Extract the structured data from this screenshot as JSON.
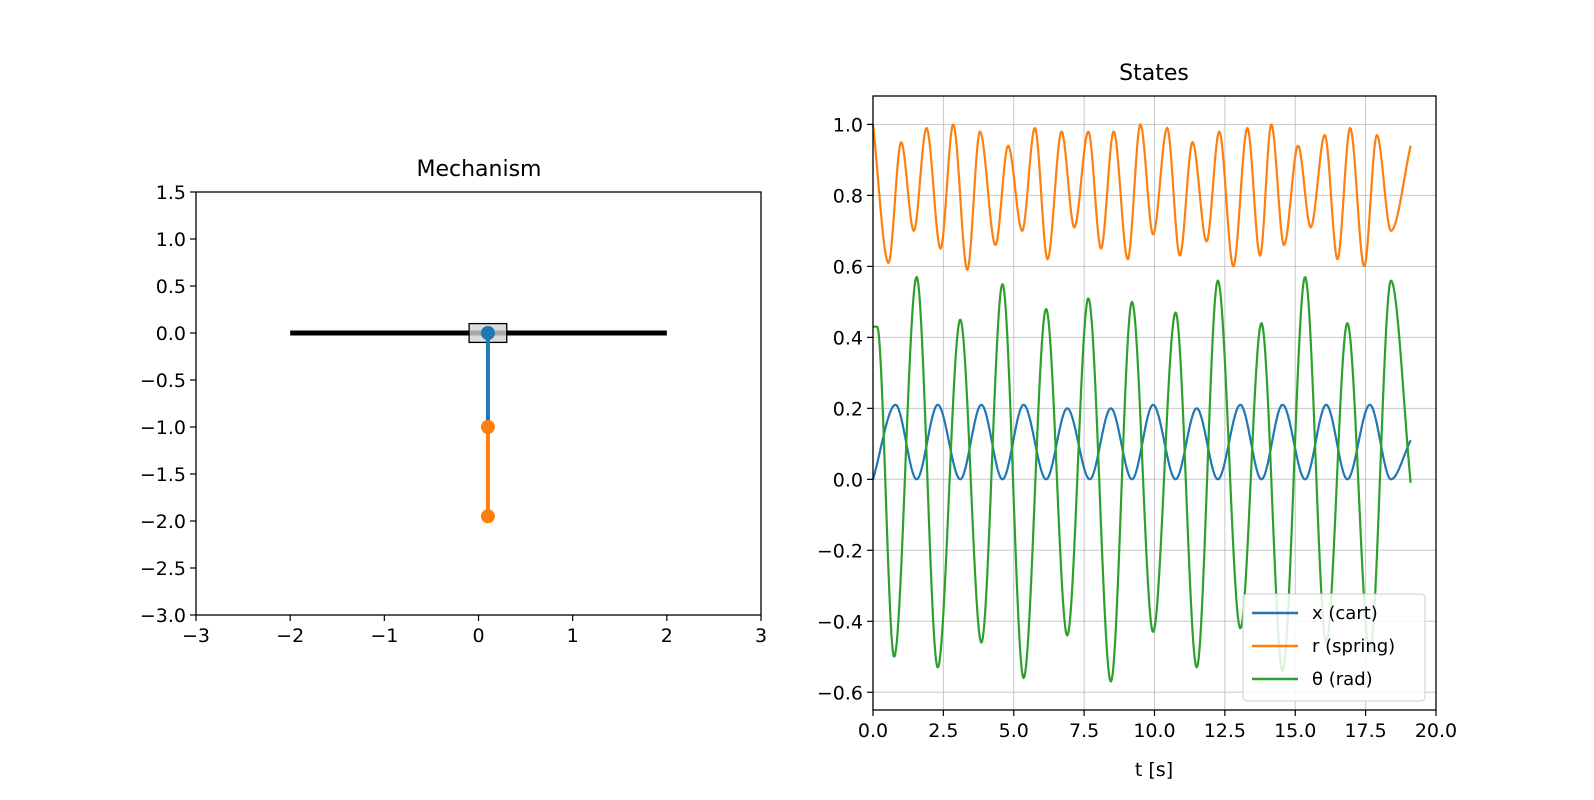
{
  "chart_data": [
    {
      "type": "line",
      "title": "Mechanism",
      "xlim": [
        -3,
        3
      ],
      "ylim": [
        -3.0,
        1.5
      ],
      "xticks": [
        -3,
        -2,
        -1,
        0,
        1,
        2,
        3
      ],
      "xtick_labels": [
        "−3",
        "−2",
        "−1",
        "0",
        "1",
        "2",
        "3"
      ],
      "yticks": [
        1.5,
        1.0,
        0.5,
        0.0,
        -0.5,
        -1.0,
        -1.5,
        -2.0,
        -2.5,
        -3.0
      ],
      "ytick_labels": [
        "1.5",
        "1.0",
        "0.5",
        "0.0",
        "−0.5",
        "−1.0",
        "−1.5",
        "−2.0",
        "−2.5",
        "−3.0"
      ],
      "grid": false,
      "elements": {
        "track": {
          "x": [
            -2,
            2
          ],
          "y": [
            0,
            0
          ],
          "color": "#000000"
        },
        "cart": {
          "center": [
            0.1,
            0.0
          ],
          "width": 0.4,
          "height": 0.2,
          "fill": "#d3d3d3",
          "edge": "#000000"
        },
        "rod": {
          "x": [
            0.1,
            0.1
          ],
          "y": [
            0.0,
            -1.0
          ],
          "color": "#1f77b4"
        },
        "spring": {
          "x": [
            0.1,
            0.1
          ],
          "y": [
            -1.0,
            -1.95
          ],
          "color": "#ff7f0e"
        },
        "points": [
          {
            "x": 0.1,
            "y": 0.0,
            "color": "#1f77b4"
          },
          {
            "x": 0.1,
            "y": -1.0,
            "color": "#ff7f0e"
          },
          {
            "x": 0.1,
            "y": -1.95,
            "color": "#ff7f0e"
          }
        ]
      }
    },
    {
      "type": "line",
      "title": "States",
      "xlabel": "t [s]",
      "xlim": [
        0.0,
        20.0
      ],
      "ylim": [
        -0.65,
        1.08
      ],
      "xticks": [
        0.0,
        2.5,
        5.0,
        7.5,
        10.0,
        12.5,
        15.0,
        17.5,
        20.0
      ],
      "xtick_labels": [
        "0.0",
        "2.5",
        "5.0",
        "7.5",
        "10.0",
        "12.5",
        "15.0",
        "17.5",
        "20.0"
      ],
      "yticks": [
        1.0,
        0.8,
        0.6,
        0.4,
        0.2,
        0.0,
        -0.2,
        -0.4,
        -0.6
      ],
      "ytick_labels": [
        "1.0",
        "0.8",
        "0.6",
        "0.4",
        "0.2",
        "0.0",
        "−0.2",
        "−0.4",
        "−0.6"
      ],
      "grid": true,
      "legend_position": "lower-right",
      "series": [
        {
          "name": "x (cart)",
          "color": "#1f77b4",
          "x": [
            0.0,
            0.8,
            1.55,
            2.3,
            3.1,
            3.85,
            4.6,
            5.35,
            6.15,
            6.9,
            7.7,
            8.45,
            9.2,
            9.95,
            10.75,
            11.5,
            12.25,
            13.05,
            13.8,
            14.55,
            15.35,
            16.1,
            16.85,
            17.65,
            18.4,
            19.1
          ],
          "values": [
            0.0,
            0.21,
            0.0,
            0.21,
            0.0,
            0.21,
            0.0,
            0.21,
            0.0,
            0.2,
            0.0,
            0.2,
            0.0,
            0.21,
            0.0,
            0.2,
            0.0,
            0.21,
            0.0,
            0.21,
            0.0,
            0.21,
            0.0,
            0.21,
            0.0,
            0.11
          ]
        },
        {
          "name": "r (spring)",
          "color": "#ff7f0e",
          "x": [
            0.0,
            0.55,
            1.0,
            1.45,
            1.9,
            2.4,
            2.85,
            3.35,
            3.8,
            4.35,
            4.8,
            5.3,
            5.75,
            6.2,
            6.7,
            7.15,
            7.65,
            8.1,
            8.55,
            9.05,
            9.5,
            9.95,
            10.45,
            10.9,
            11.35,
            11.85,
            12.3,
            12.8,
            13.3,
            13.75,
            14.15,
            14.6,
            15.1,
            15.55,
            16.05,
            16.5,
            16.95,
            17.45,
            17.9,
            18.4,
            19.1
          ],
          "values": [
            1.0,
            0.61,
            0.95,
            0.7,
            0.99,
            0.65,
            1.0,
            0.59,
            0.98,
            0.66,
            0.94,
            0.7,
            0.99,
            0.62,
            0.98,
            0.71,
            0.98,
            0.65,
            0.98,
            0.62,
            1.0,
            0.69,
            0.99,
            0.63,
            0.95,
            0.67,
            0.98,
            0.6,
            0.99,
            0.63,
            1.0,
            0.66,
            0.94,
            0.71,
            0.97,
            0.62,
            0.99,
            0.6,
            0.97,
            0.7,
            0.94
          ]
        },
        {
          "name": "θ (rad)",
          "color": "#2ca02c",
          "x": [
            0.0,
            0.15,
            0.75,
            1.55,
            2.3,
            3.1,
            3.85,
            4.6,
            5.35,
            6.15,
            6.9,
            7.65,
            8.45,
            9.2,
            9.95,
            10.75,
            11.5,
            12.25,
            13.05,
            13.8,
            14.55,
            15.35,
            16.1,
            16.85,
            17.65,
            18.4,
            19.1
          ],
          "values": [
            0.43,
            0.43,
            -0.5,
            0.57,
            -0.53,
            0.45,
            -0.46,
            0.55,
            -0.56,
            0.48,
            -0.44,
            0.51,
            -0.57,
            0.5,
            -0.43,
            0.47,
            -0.53,
            0.56,
            -0.42,
            0.44,
            -0.54,
            0.57,
            -0.46,
            0.44,
            -0.49,
            0.56,
            -0.01
          ]
        }
      ]
    }
  ]
}
